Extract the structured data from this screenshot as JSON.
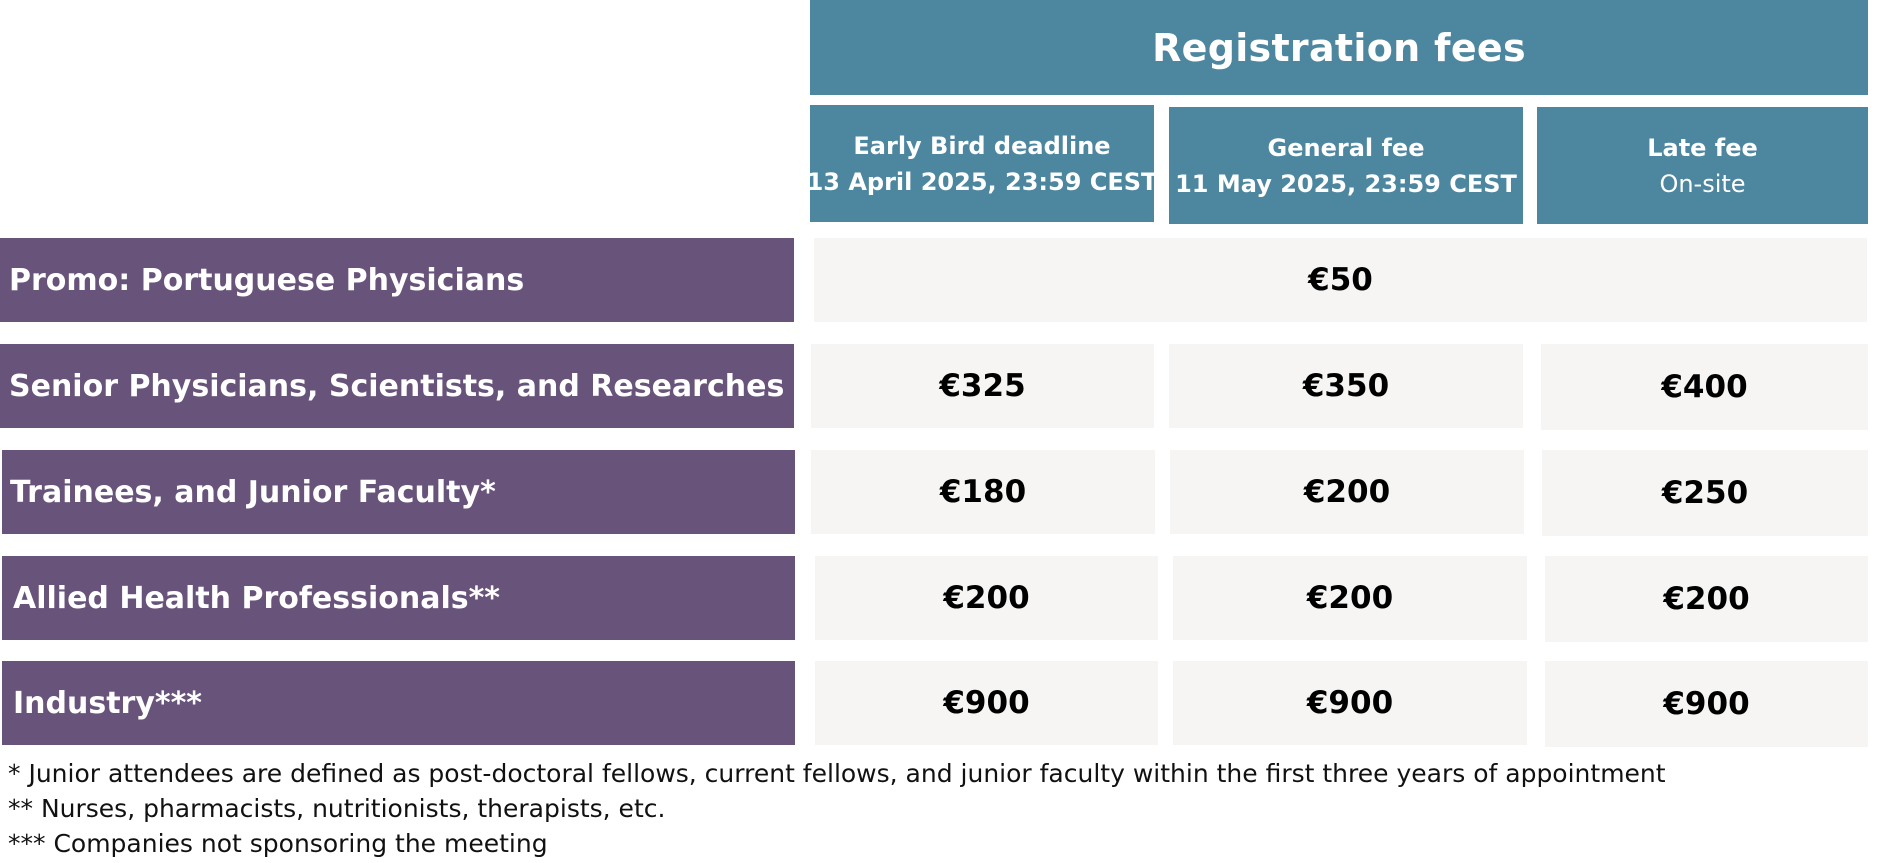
{
  "table": {
    "title": "Registration fees",
    "columns": [
      {
        "line1": "Early Bird deadline",
        "line2": "13 April 2025, 23:59 CEST"
      },
      {
        "line1": "General fee",
        "line2": "11 May 2025, 23:59 CEST"
      },
      {
        "line1": "Late fee",
        "line2": "On-site"
      }
    ],
    "promo": {
      "label": "Promo: Portuguese Physicians",
      "value": "€50"
    },
    "rows": [
      {
        "label": "Senior Physicians, Scientists, and Researches",
        "values": [
          "€325",
          "€350",
          "€400"
        ]
      },
      {
        "label": "Trainees, and Junior Faculty*",
        "values": [
          "€180",
          "€200",
          "€250"
        ]
      },
      {
        "label": "Allied Health Professionals**",
        "values": [
          "€200",
          "€200",
          "€200"
        ]
      },
      {
        "label": "Industry***",
        "values": [
          "€900",
          "€900",
          "€900"
        ]
      }
    ]
  },
  "footnotes": [
    "* Junior attendees are defined as post-doctoral fellows, current fellows, and junior faculty within the first three years of appointment",
    "** Nurses, pharmacists, nutritionists, therapists, etc.",
    "*** Companies not sponsoring the meeting"
  ]
}
